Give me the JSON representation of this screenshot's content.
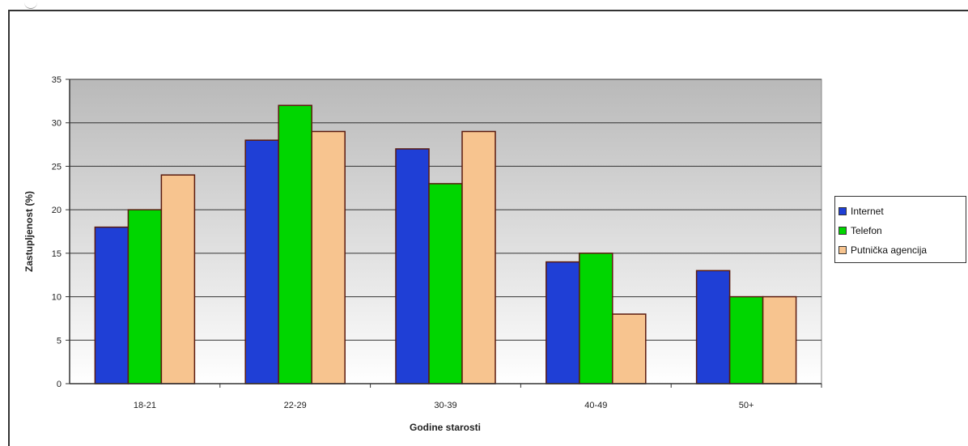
{
  "chart_data": {
    "type": "bar",
    "categories": [
      "18-21",
      "22-29",
      "30-39",
      "40-49",
      "50+"
    ],
    "series": [
      {
        "name": "Internet",
        "values": [
          18,
          28,
          27,
          14,
          13
        ],
        "color": "#1f3fd6"
      },
      {
        "name": "Telefon",
        "values": [
          20,
          32,
          23,
          15,
          10
        ],
        "color": "#00d600"
      },
      {
        "name": "Putnička agencija",
        "values": [
          24,
          29,
          29,
          8,
          10
        ],
        "color": "#f7c48f"
      }
    ],
    "yticks": [
      "0",
      "5",
      "10",
      "15",
      "20",
      "25",
      "30",
      "35"
    ],
    "ylim": [
      0,
      35
    ],
    "ylabel": "Zastupljenost (%)",
    "xlabel": "Godine starosti",
    "grid": true,
    "legend_position": "right",
    "plot_background": "gradient gray-to-white",
    "bar_outline_color": "#5a1a0e"
  }
}
